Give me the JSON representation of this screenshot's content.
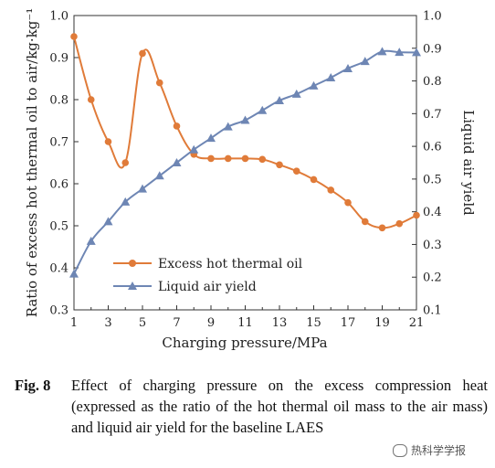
{
  "chart_data": {
    "type": "line",
    "xlabel": "Charging pressure/MPa",
    "ylabel_left": "Ratio of excess hot thermal oil to air/kg·kg⁻¹",
    "ylabel_right": "Liquid air yield",
    "xlim": [
      1,
      21
    ],
    "x_ticks": [
      1,
      3,
      5,
      7,
      9,
      11,
      13,
      15,
      17,
      19,
      21
    ],
    "ylim_left": [
      0.3,
      1.0
    ],
    "ylim_right": [
      0.1,
      1.0
    ],
    "y_ticks_left": [
      "0.3",
      "0.4",
      "0.5",
      "0.6",
      "0.7",
      "0.8",
      "0.9",
      "1.0"
    ],
    "y_ticks_right": [
      "0.1",
      "0.2",
      "0.3",
      "0.4",
      "0.5",
      "0.6",
      "0.7",
      "0.8",
      "0.9",
      "1.0"
    ],
    "grid": false,
    "legend_position": "lower-left",
    "series": [
      {
        "name": "Excess hot thermal oil",
        "axis": "left",
        "color": "#E07B39",
        "marker": "circle",
        "x": [
          1,
          2,
          3,
          4,
          5,
          6,
          7,
          8,
          9,
          10,
          11,
          12,
          13,
          14,
          15,
          16,
          17,
          18,
          19,
          20,
          21
        ],
        "values": [
          0.95,
          0.8,
          0.7,
          0.65,
          0.91,
          0.84,
          0.737,
          0.67,
          0.66,
          0.66,
          0.66,
          0.658,
          0.645,
          0.63,
          0.61,
          0.585,
          0.555,
          0.51,
          0.495,
          0.505,
          0.525
        ]
      },
      {
        "name": "Liquid air yield",
        "axis": "right",
        "color": "#6E86B4",
        "marker": "triangle",
        "x": [
          1,
          2,
          3,
          4,
          5,
          6,
          7,
          8,
          9,
          10,
          11,
          12,
          13,
          14,
          15,
          16,
          17,
          18,
          19,
          20,
          21
        ],
        "values": [
          0.21,
          0.31,
          0.37,
          0.43,
          0.47,
          0.51,
          0.55,
          0.59,
          0.625,
          0.66,
          0.68,
          0.71,
          0.74,
          0.76,
          0.785,
          0.81,
          0.838,
          0.86,
          0.89,
          0.888,
          0.887
        ]
      }
    ]
  },
  "caption": {
    "label": "Fig. 8",
    "text": "Effect of charging pressure on the excess compression heat (expressed as the ratio of the hot thermal oil mass to the air mass) and liquid air yield for the baseline LAES"
  },
  "watermark": {
    "icon": "wechat-icon",
    "text": "热科学学报"
  }
}
